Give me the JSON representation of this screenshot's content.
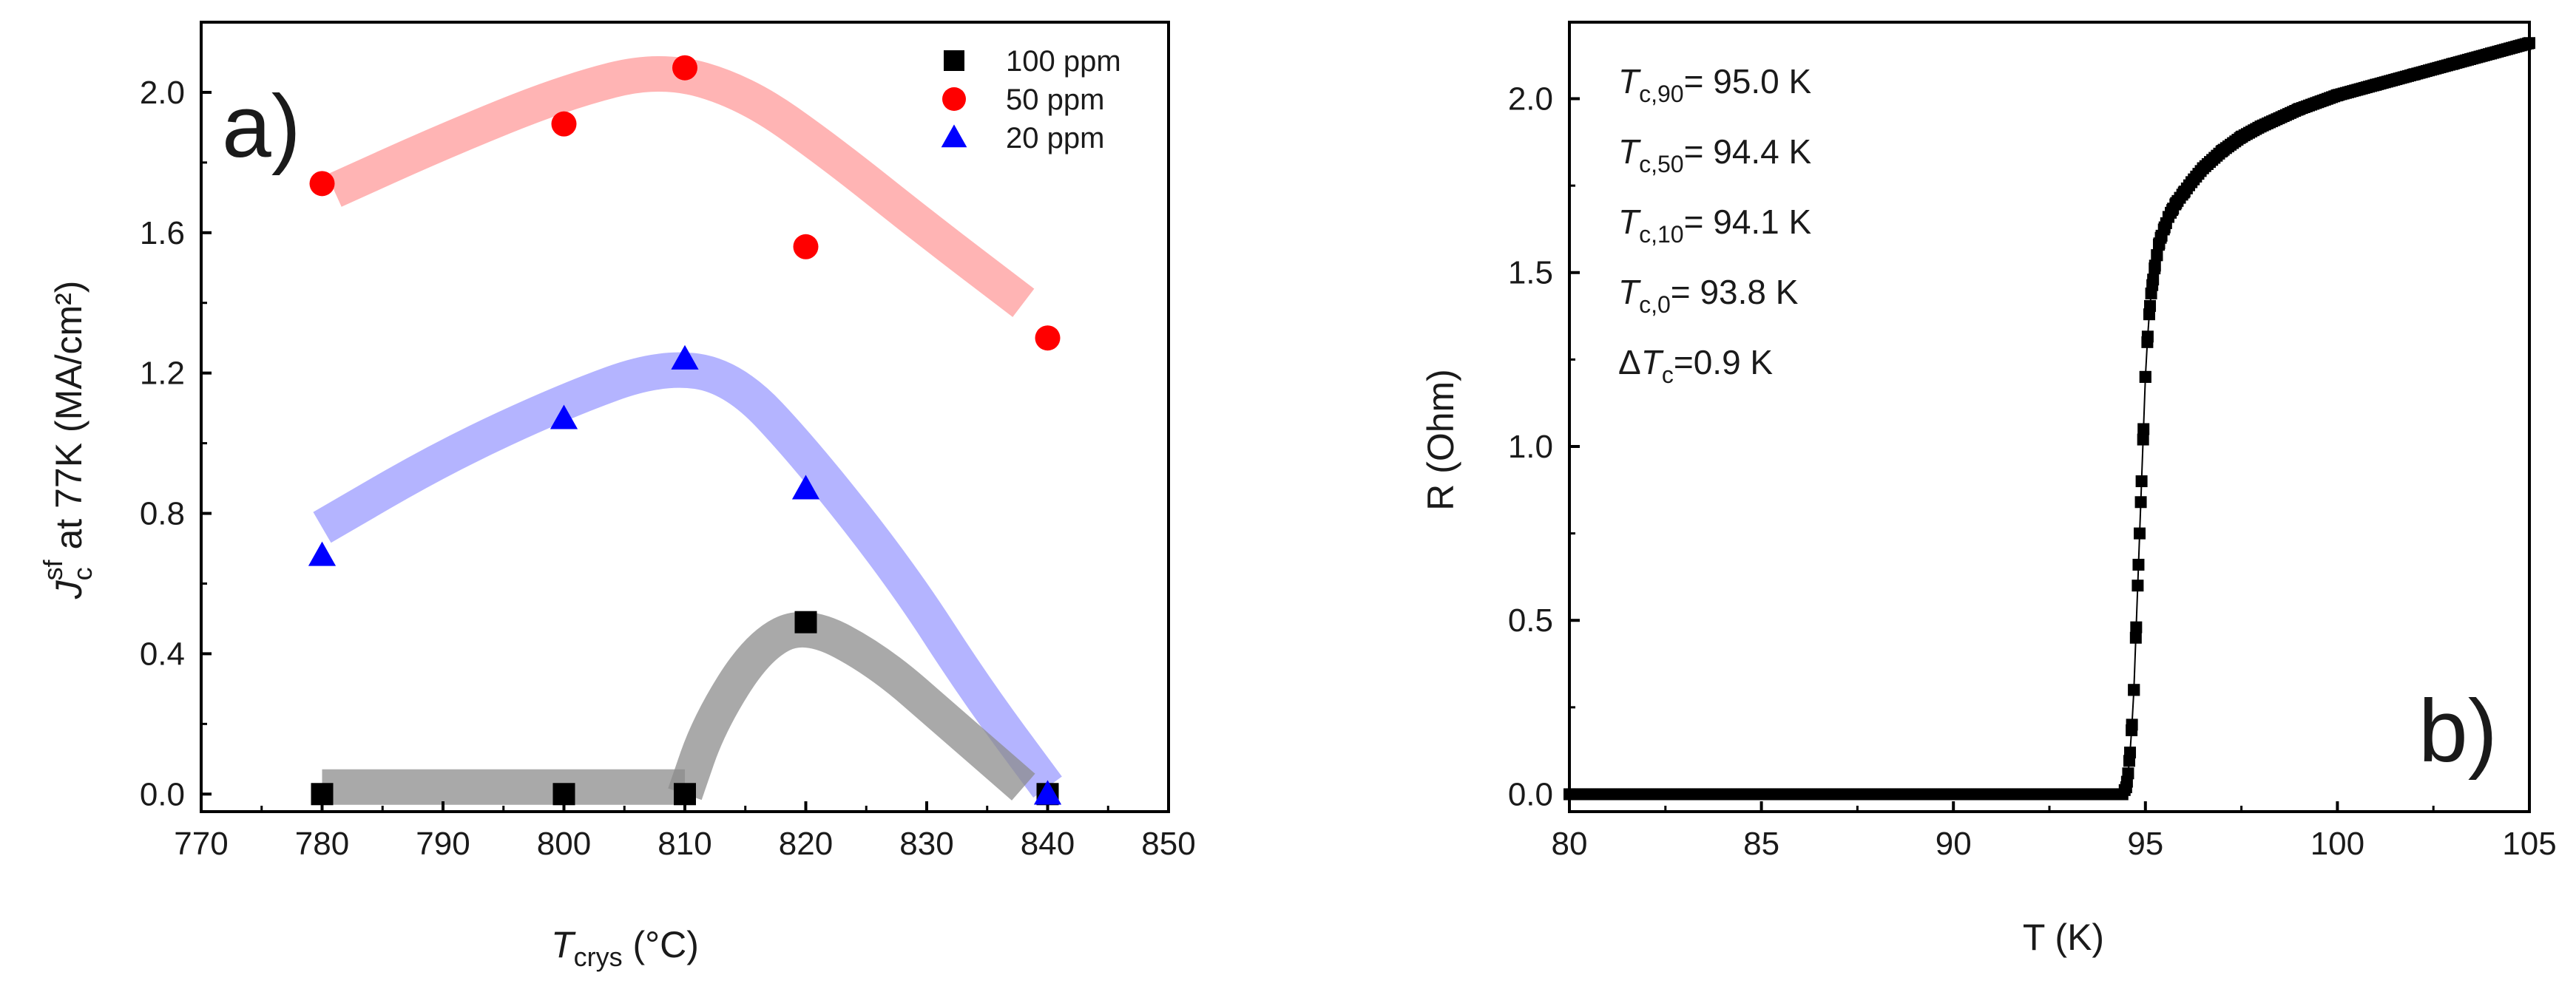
{
  "chart_data": [
    {
      "type": "scatter",
      "panel_label": "a)",
      "xlabel_main": "T",
      "xlabel_sub": "crys",
      "xlabel_unit": " (°C)",
      "ylabel_main": "J",
      "ylabel_sub": "c",
      "ylabel_sup": "sf",
      "ylabel_rest": " at 77K (MA/cm²)",
      "xlim": [
        770,
        850
      ],
      "ylim": [
        -0.05,
        2.2
      ],
      "xticks": [
        770,
        780,
        790,
        800,
        810,
        820,
        830,
        840,
        850
      ],
      "yticks": [
        0.0,
        0.4,
        0.8,
        1.2,
        1.6,
        2.0
      ],
      "ytick_labels": [
        "0.0",
        "0.4",
        "0.8",
        "1.2",
        "1.6",
        "2.0"
      ],
      "legend_position": "top-right",
      "series": [
        {
          "name": "100 ppm",
          "marker": "square",
          "color": "#000000",
          "band_color": "#8c8c8c",
          "x": [
            780,
            800,
            810,
            820,
            840
          ],
          "y": [
            0.0,
            0.0,
            0.0,
            0.49,
            0.0
          ]
        },
        {
          "name": "50 ppm",
          "marker": "circle",
          "color": "#ff0000",
          "band_color": "#ff9b9b",
          "x": [
            780,
            800,
            810,
            820,
            840
          ],
          "y": [
            1.74,
            1.91,
            2.07,
            1.56,
            1.3
          ]
        },
        {
          "name": "20 ppm",
          "marker": "triangle",
          "color": "#0000ff",
          "band_color": "#9b9bff",
          "x": [
            780,
            800,
            810,
            820,
            840
          ],
          "y": [
            0.68,
            1.07,
            1.24,
            0.87,
            0.0
          ]
        }
      ],
      "guide_bands": [
        {
          "series": "50 ppm",
          "x": [
            781,
            790,
            800,
            808,
            815,
            822,
            830,
            838
          ],
          "y": [
            1.72,
            1.86,
            2.0,
            2.07,
            2.0,
            1.83,
            1.61,
            1.4
          ]
        },
        {
          "series": "20 ppm",
          "x": [
            780,
            790,
            800,
            808,
            814,
            820,
            828,
            834,
            840
          ],
          "y": [
            0.76,
            0.96,
            1.12,
            1.22,
            1.19,
            0.97,
            0.62,
            0.3,
            0.02
          ]
        },
        {
          "series": "100 ppm",
          "x": [
            780,
            810
          ],
          "y": [
            0.02,
            0.02
          ]
        },
        {
          "series": "100 ppm",
          "x": [
            810,
            812,
            816,
            820,
            826,
            832,
            838
          ],
          "y": [
            0.0,
            0.2,
            0.42,
            0.49,
            0.38,
            0.2,
            0.02
          ]
        }
      ]
    },
    {
      "type": "scatter",
      "panel_label": "b)",
      "xlabel": "T (K)",
      "ylabel": "R (Ohm)",
      "xlim": [
        80,
        105
      ],
      "ylim": [
        -0.05,
        2.22
      ],
      "xticks": [
        80,
        85,
        90,
        95,
        100,
        105
      ],
      "yticks": [
        0.0,
        0.5,
        1.0,
        1.5,
        2.0
      ],
      "ytick_labels": [
        "0.0",
        "0.5",
        "1.0",
        "1.5",
        "2.0"
      ],
      "series": [
        {
          "name": "",
          "marker": "square",
          "color": "#000000",
          "x": [
            80,
            94.4,
            94.5,
            94.55,
            94.6,
            94.65,
            94.7,
            94.75,
            94.8,
            94.85,
            94.9,
            94.95,
            95.0,
            95.05,
            95.1,
            95.15,
            95.2,
            95.25,
            95.3,
            95.35,
            95.4,
            95.5,
            95.6,
            95.7,
            95.8,
            96.0,
            96.2,
            96.5,
            97.0,
            97.5,
            98.0,
            99.0,
            100.0,
            101.0,
            102.0,
            103.0,
            104.0,
            105.0
          ],
          "y": [
            0.0,
            0.0,
            0.02,
            0.06,
            0.12,
            0.2,
            0.3,
            0.45,
            0.6,
            0.75,
            0.9,
            1.05,
            1.2,
            1.3,
            1.38,
            1.44,
            1.48,
            1.52,
            1.55,
            1.58,
            1.6,
            1.63,
            1.66,
            1.68,
            1.7,
            1.73,
            1.76,
            1.8,
            1.85,
            1.89,
            1.92,
            1.97,
            2.01,
            2.04,
            2.07,
            2.1,
            2.13,
            2.16
          ]
        }
      ],
      "annotation_lines": [
        {
          "main": "T",
          "sub": "c,90",
          "rest": "= 95.0 K"
        },
        {
          "main": "T",
          "sub": "c,50",
          "rest": "= 94.4 K"
        },
        {
          "main": "T",
          "sub": "c,10",
          "rest": "= 94.1 K"
        },
        {
          "main": "T",
          "sub": "c,0",
          "rest": "= 93.8 K"
        },
        {
          "prefix": "Δ",
          "main": "T",
          "sub": "c",
          "rest": "=0.9 K"
        }
      ]
    }
  ]
}
